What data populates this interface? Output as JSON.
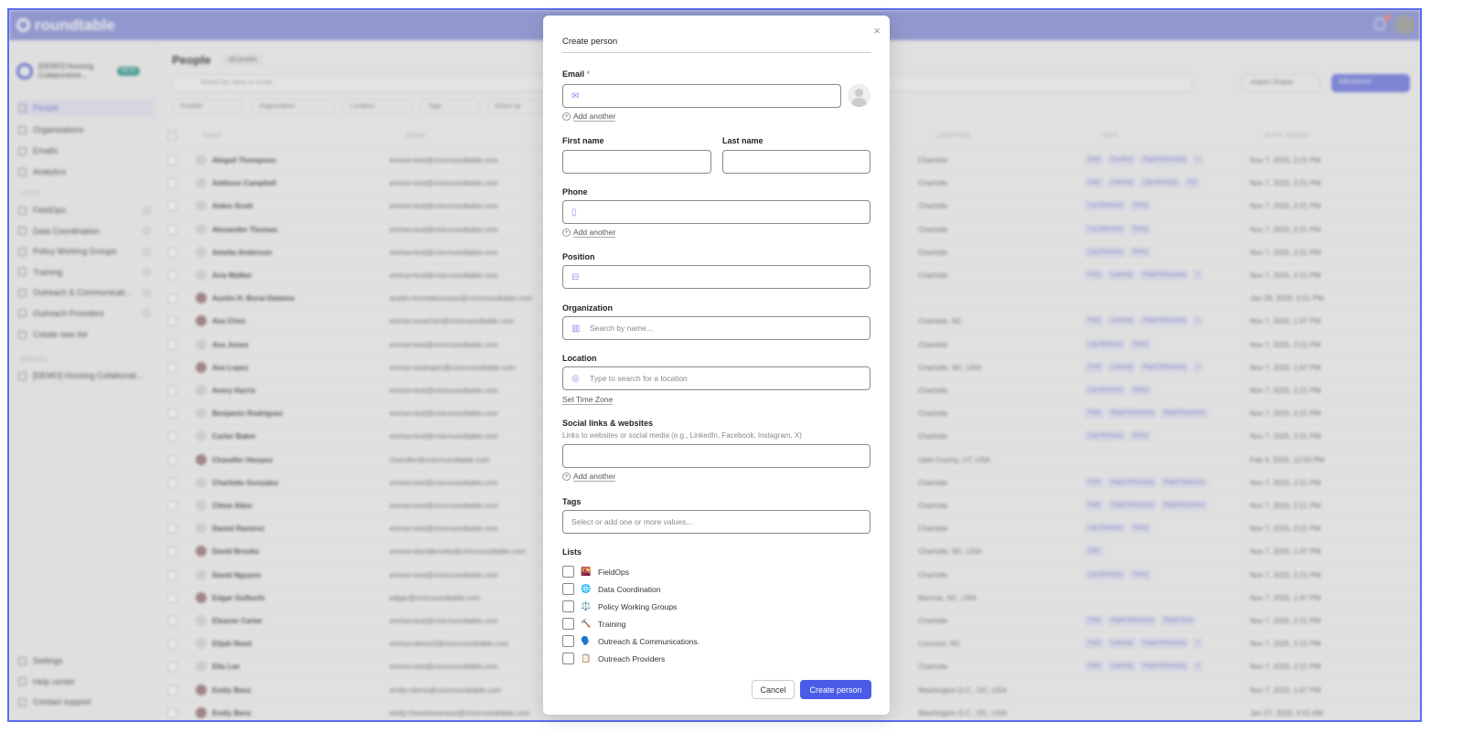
{
  "app": {
    "name": "roundtable"
  },
  "sidebar": {
    "workspace": {
      "name": "[DEMO] Housing Collaborative...",
      "badge": "BETA"
    },
    "nav": [
      {
        "label": "People",
        "active": true
      },
      {
        "label": "Organizations"
      },
      {
        "label": "Emails"
      },
      {
        "label": "Analytics"
      }
    ],
    "lists_title": "LISTS",
    "lists": [
      "FieldOps",
      "Data Coordination",
      "Policy Working Groups",
      "Training",
      "Outreach & Communicati...",
      "Outreach Providers"
    ],
    "create_list": "Create new list",
    "spaces_title": "SPACES",
    "spaces": [
      "[DEMO] Housing Collaborati..."
    ],
    "footer": [
      "Settings",
      "Help center",
      "Contact support"
    ]
  },
  "main": {
    "title": "People",
    "view": "All people",
    "search_placeholder": "Search by name or email...",
    "import_export": "Import / Export",
    "add_person": "Add person",
    "filters": [
      "Position",
      "Organization",
      "Location",
      "Tags",
      "Active sp"
    ],
    "columns": [
      "NAME",
      "EMAIL",
      "LOCATION",
      "TAGS",
      "DATE ADDED"
    ],
    "rows": [
      {
        "name": "Abigail Thompson",
        "email": "emma+test@civicroundtable.com",
        "location": "Charlotte",
        "tags": [
          "Field",
          "Frontline",
          "Rapid Rehousing",
          "+"
        ],
        "date": "Nov 7, 2025, 2:21 PM"
      },
      {
        "name": "Addison Campbell",
        "email": "emma+test@civicroundtable.com",
        "location": "Charlotte",
        "tags": [
          "Data",
          "Learning",
          "Leg Advocacy",
          "Pol"
        ],
        "date": "Nov 7, 2025, 2:21 PM"
      },
      {
        "name": "Aiden Scott",
        "email": "emma+test@civicroundtable.com",
        "location": "Charlotte",
        "tags": [
          "Leg Advocacy",
          "Policy"
        ],
        "date": "Nov 7, 2025, 2:21 PM"
      },
      {
        "name": "Alexander Thomas",
        "email": "emma+test@civicroundtable.com",
        "location": "Charlotte",
        "tags": [
          "Leg Advocacy",
          "Policy"
        ],
        "date": "Nov 7, 2025, 2:21 PM"
      },
      {
        "name": "Amelia Anderson",
        "email": "emma+test@civicroundtable.com",
        "location": "Charlotte",
        "tags": [
          "Leg Advocacy",
          "Policy"
        ],
        "date": "Nov 7, 2025, 2:21 PM"
      },
      {
        "name": "Aria Walker",
        "email": "emma+test@civicroundtable.com",
        "location": "Charlotte",
        "tags": [
          "Field",
          "Learning",
          "Rapid Rehousing",
          "+"
        ],
        "date": "Nov 7, 2025, 2:21 PM"
      },
      {
        "name": "Austin H. Borai-Dewees",
        "email": "austin+homelessness@civicroundtable.com",
        "location": "",
        "tags": [],
        "date": "Jan 28, 2026, 5:51 PM",
        "photo": true
      },
      {
        "name": "Ava Chen",
        "email": "emma+avachen@civicroundtable.com",
        "location": "Charlotte, NC",
        "tags": [
          "Field",
          "Learning",
          "Rapid Rehousing",
          "+"
        ],
        "date": "Nov 7, 2025, 1:47 PM",
        "photo": true
      },
      {
        "name": "Ava Jones",
        "email": "emma+test@civicroundtable.com",
        "location": "Charlotte",
        "tags": [
          "Leg Advocacy",
          "Policy"
        ],
        "date": "Nov 7, 2025, 2:21 PM"
      },
      {
        "name": "Ava Lopez",
        "email": "emma+avalopez@civicroundtable.com",
        "location": "Charlotte, NC, USA",
        "tags": [
          "Field",
          "Learning",
          "Rapid Rehousing",
          "+"
        ],
        "date": "Nov 7, 2025, 1:47 PM",
        "photo": true
      },
      {
        "name": "Avery Harris",
        "email": "emma+test@civicroundtable.com",
        "location": "Charlotte",
        "tags": [
          "Leg Advocacy",
          "Policy"
        ],
        "date": "Nov 7, 2025, 2:21 PM"
      },
      {
        "name": "Benjamin Rodriguez",
        "email": "emma+test@civicroundtable.com",
        "location": "Charlotte",
        "tags": [
          "Field",
          "Rapid Rehousing",
          "Rapid Response"
        ],
        "date": "Nov 7, 2025, 2:21 PM"
      },
      {
        "name": "Carter Baker",
        "email": "emma+test@civicroundtable.com",
        "location": "Charlotte",
        "tags": [
          "Leg Advocacy",
          "Policy"
        ],
        "date": "Nov 7, 2025, 2:21 PM"
      },
      {
        "name": "Chandler Hoopes",
        "email": "chandler@civicroundtable.com",
        "location": "Utah County, UT, USA",
        "tags": [],
        "date": "Feb 3, 2026, 12:53 PM",
        "photo": true
      },
      {
        "name": "Charlotte Gonzalez",
        "email": "emma+test@civicroundtable.com",
        "location": "Charlotte",
        "tags": [
          "Field",
          "Rapid Rehousing",
          "Rapid Response"
        ],
        "date": "Nov 7, 2025, 2:21 PM"
      },
      {
        "name": "Chloe Allen",
        "email": "emma+test@civicroundtable.com",
        "location": "Charlotte",
        "tags": [
          "Field",
          "Rapid Rehousing",
          "Rapid Response"
        ],
        "date": "Nov 7, 2025, 2:21 PM"
      },
      {
        "name": "Daniel Ramirez",
        "email": "emma+test@civicroundtable.com",
        "location": "Charlotte",
        "tags": [
          "Leg Advocacy",
          "Policy"
        ],
        "date": "Nov 7, 2025, 2:21 PM"
      },
      {
        "name": "David Brooks",
        "email": "emma+davidbrooks@civicroundtable.com",
        "location": "Charlotte, NC, USA",
        "tags": [
          "Data"
        ],
        "date": "Nov 7, 2025, 1:47 PM",
        "photo": true
      },
      {
        "name": "David Nguyen",
        "email": "emma+test@civicroundtable.com",
        "location": "Charlotte",
        "tags": [
          "Leg Advocacy",
          "Policy"
        ],
        "date": "Nov 7, 2025, 2:21 PM"
      },
      {
        "name": "Edgar Gulfuchi",
        "email": "edgar@civicroundtable.com",
        "location": "Monroe, NC, USA",
        "tags": [],
        "date": "Nov 7, 2025, 1:47 PM",
        "photo": true
      },
      {
        "name": "Eleanor Carter",
        "email": "emma+test@civicroundtable.com",
        "location": "Charlotte",
        "tags": [
          "Field",
          "Rapid Rehousing",
          "Rapid Resp"
        ],
        "date": "Nov 7, 2025, 2:21 PM"
      },
      {
        "name": "Elijah Reed",
        "email": "emma+demo3@civicroundtable.com",
        "location": "Concord, NC",
        "tags": [
          "Field",
          "Learning",
          "Rapid Rehousing",
          "+"
        ],
        "date": "Nov 7, 2025, 2:15 PM"
      },
      {
        "name": "Ella Lee",
        "email": "emma+test@civicroundtable.com",
        "location": "Charlotte",
        "tags": [
          "Field",
          "Learning",
          "Rapid Rehousing",
          "+"
        ],
        "date": "Nov 7, 2025, 2:21 PM"
      },
      {
        "name": "Emily Benz",
        "email": "emily+demo@civicroundtable.com",
        "location": "Washington D.C., DC, USA",
        "tags": [],
        "date": "Nov 7, 2025, 1:47 PM",
        "photo": true
      },
      {
        "name": "Emily Benz",
        "email": "emily+homelessness@civicroundtable.com",
        "location": "Washington D.C., DC, USA",
        "tags": [],
        "date": "Jan 27, 2026, 6:41 AM",
        "photo": true
      }
    ]
  },
  "modal": {
    "title": "Create person",
    "email_label": "Email",
    "required_mark": "*",
    "email_value": "",
    "add_another": "Add another",
    "first_name_label": "First name",
    "last_name_label": "Last name",
    "phone_label": "Phone",
    "position_label": "Position",
    "organization_label": "Organization",
    "organization_placeholder": "Search by name...",
    "location_label": "Location",
    "location_placeholder": "Type to search for a location",
    "set_time_zone": "Set Time Zone",
    "social_label": "Social links & websites",
    "social_help": "Links to websites or social media (e.g., LinkedIn, Facebook, Instagram, X)",
    "tags_label": "Tags",
    "tags_placeholder": "Select or add one or more values...",
    "lists_label": "Lists",
    "lists": [
      {
        "emoji": "🌇",
        "label": "FieldOps",
        "checked": false
      },
      {
        "emoji": "🌐",
        "label": "Data Coordination",
        "checked": false
      },
      {
        "emoji": "⚖️",
        "label": "Policy Working Groups",
        "checked": false
      },
      {
        "emoji": "🔨",
        "label": "Training",
        "checked": false
      },
      {
        "emoji": "🗣️",
        "label": "Outreach & Communications.",
        "checked": false
      },
      {
        "emoji": "📋",
        "label": "Outreach Providers",
        "checked": false
      }
    ],
    "cancel": "Cancel",
    "create": "Create person",
    "close_icon": "×"
  },
  "colors": {
    "accent": "#4a5be8",
    "topbar": "#979fdf",
    "frame": "#5b6cf0"
  }
}
